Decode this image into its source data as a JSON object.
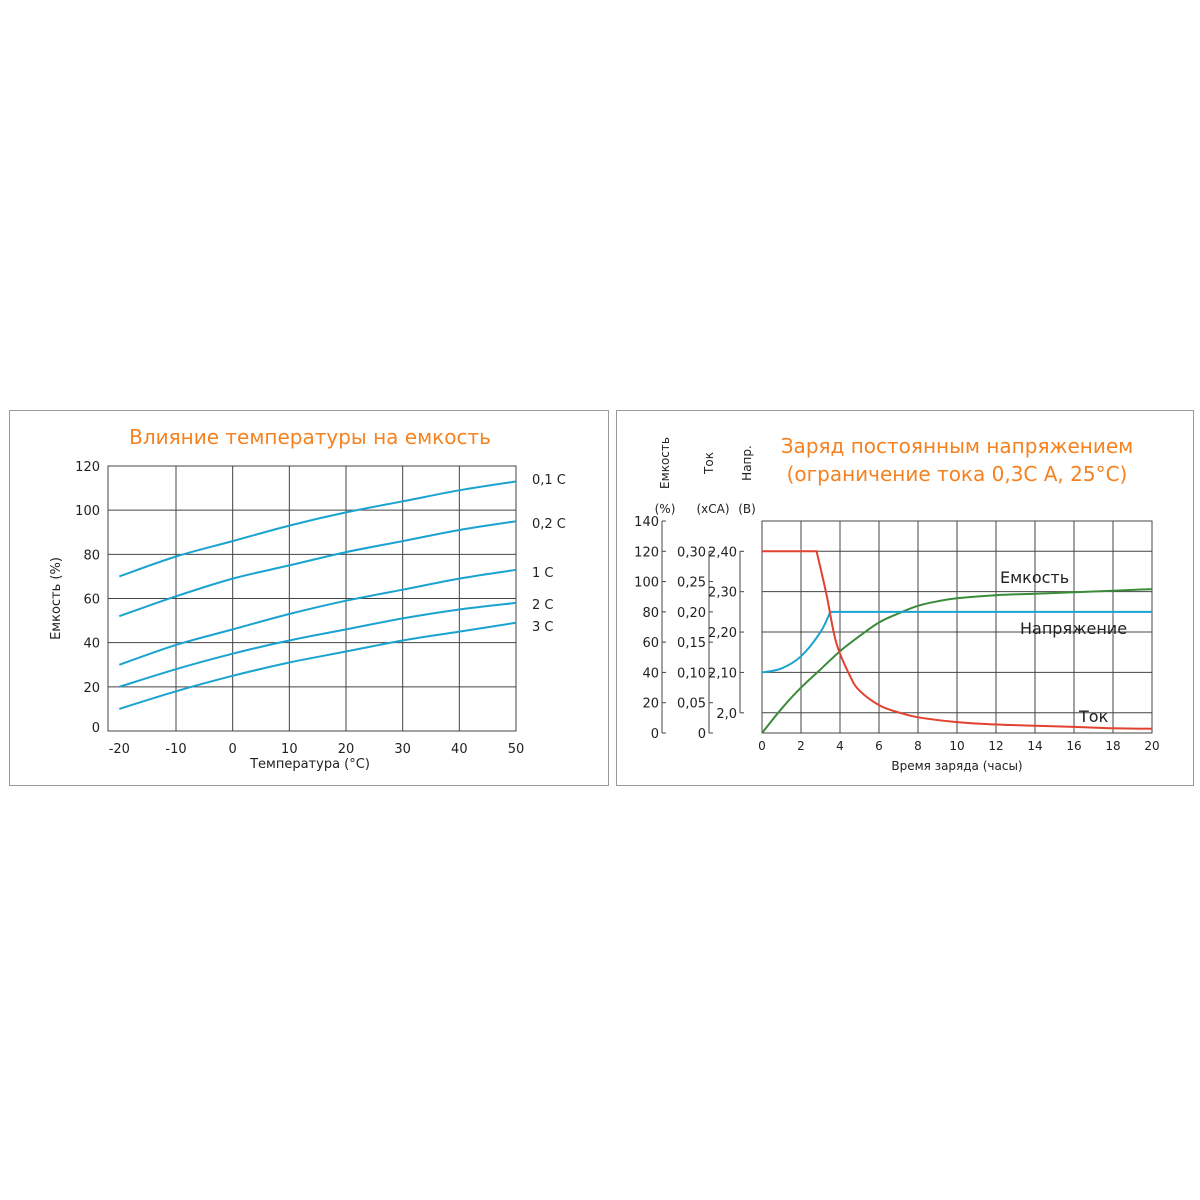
{
  "chart_data": [
    {
      "type": "line",
      "title": "Влияние температуры на емкость",
      "xlabel": "Температура (°C)",
      "ylabel": "Емкость (%)",
      "xlim": [
        -22,
        50
      ],
      "ylim": [
        0,
        120
      ],
      "xticks": [
        "-20",
        "-10",
        "0",
        "10",
        "20",
        "30",
        "40",
        "50"
      ],
      "yticks": [
        "0",
        "20",
        "40",
        "60",
        "80",
        "100",
        "120"
      ],
      "x": [
        -20,
        -10,
        0,
        10,
        20,
        30,
        40,
        50
      ],
      "series": [
        {
          "name": "0,1 C",
          "values": [
            70,
            79,
            86,
            93,
            99,
            104,
            109,
            113
          ]
        },
        {
          "name": "0,2 C",
          "values": [
            52,
            61,
            69,
            75,
            81,
            86,
            91,
            95
          ]
        },
        {
          "name": "1 C",
          "values": [
            30,
            39,
            46,
            53,
            59,
            64,
            69,
            73
          ]
        },
        {
          "name": "2 C",
          "values": [
            20,
            28,
            35,
            41,
            46,
            51,
            55,
            58
          ]
        },
        {
          "name": "3 C",
          "values": [
            10,
            18,
            25,
            31,
            36,
            41,
            45,
            49
          ]
        }
      ],
      "color": "#1aa3cf",
      "grid": true
    },
    {
      "type": "line",
      "title": [
        "Заряд постоянным напряжением",
        "(ограничение тока 0,3С А, 25°C)"
      ],
      "xlabel": "Время заряда (часы)",
      "xlim": [
        0,
        20
      ],
      "xticks": [
        "0",
        "2",
        "4",
        "6",
        "8",
        "10",
        "12",
        "14",
        "16",
        "18",
        "20"
      ],
      "axes": [
        {
          "label": "Емкость",
          "unit": "(%)",
          "ticks": [
            "0",
            "20",
            "40",
            "60",
            "80",
            "100",
            "120",
            "140"
          ],
          "range": [
            0,
            140
          ]
        },
        {
          "label": "Ток",
          "unit": "(xCA)",
          "ticks": [
            "0",
            "0,05",
            "0,10",
            "0,15",
            "0,20",
            "0,25",
            "0,30"
          ],
          "range": [
            0,
            0.35
          ]
        },
        {
          "label": "Напр.",
          "unit": "(B)",
          "ticks": [
            "2,0",
            "2,10",
            "2,20",
            "2,30",
            "2,40"
          ],
          "range": [
            1.95,
            2.475
          ]
        }
      ],
      "series": [
        {
          "name": "Емкость",
          "axis": "Емкость",
          "color": "#3b8c3a",
          "x": [
            0,
            1,
            2,
            3,
            4,
            5,
            6,
            7,
            8,
            9,
            10,
            12,
            14,
            16,
            18,
            20
          ],
          "values": [
            0,
            16,
            30,
            42,
            54,
            64,
            73,
            79,
            84,
            87,
            89,
            91,
            92,
            93,
            94,
            95
          ]
        },
        {
          "name": "Напряжение",
          "axis": "Напр.",
          "color": "#1aa3cf",
          "x": [
            0,
            1,
            2,
            3,
            3.5,
            4,
            8,
            12,
            16,
            20
          ],
          "values": [
            2.1,
            2.11,
            2.14,
            2.2,
            2.25,
            2.25,
            2.25,
            2.25,
            2.25,
            2.25
          ]
        },
        {
          "name": "Ток",
          "axis": "Ток",
          "color": "#e2412f",
          "x": [
            0,
            1,
            2,
            2.8,
            3.3,
            3.8,
            4.5,
            5,
            6,
            7,
            8,
            10,
            12,
            14,
            16,
            18,
            20
          ],
          "values": [
            0.3,
            0.3,
            0.3,
            0.3,
            0.23,
            0.15,
            0.095,
            0.07,
            0.046,
            0.034,
            0.026,
            0.018,
            0.014,
            0.012,
            0.01,
            0.008,
            0.007
          ]
        }
      ],
      "grid": true
    }
  ]
}
